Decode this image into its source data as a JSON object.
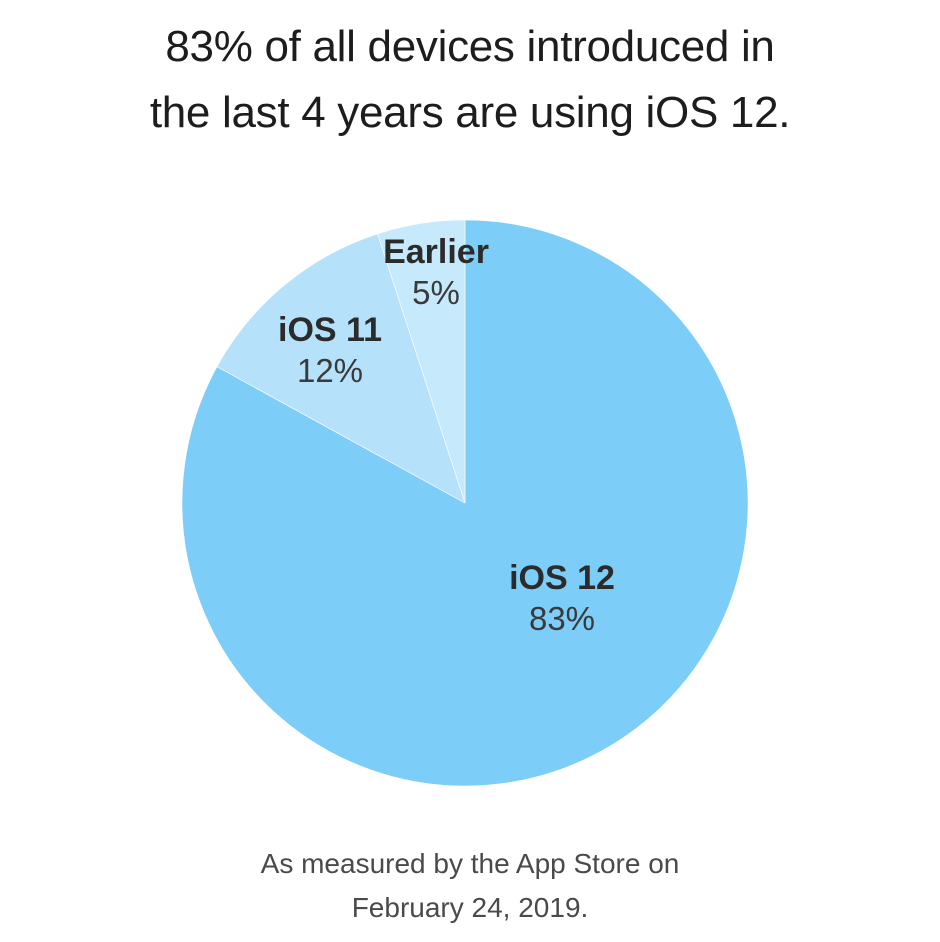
{
  "title": {
    "line1": "83% of all devices introduced in",
    "line2": "the last 4 years are using iOS 12."
  },
  "footnote": {
    "line1": "As measured by the App Store on",
    "line2": "February 24, 2019."
  },
  "colors": {
    "ios12": "#7ccdf8",
    "ios11": "#b5e2fa",
    "earlier": "#c6e9fc",
    "divider": "#ffffff"
  },
  "chart_data": {
    "type": "pie",
    "title": "83% of all devices introduced in the last 4 years are using iOS 12.",
    "subtitle": "As measured by the App Store on February 24, 2019.",
    "categories": [
      "iOS 12",
      "iOS 11",
      "Earlier"
    ],
    "values": [
      83,
      12,
      5
    ],
    "labels": [
      {
        "name": "iOS 12",
        "pct": "83%"
      },
      {
        "name": "iOS 11",
        "pct": "12%"
      },
      {
        "name": "Earlier",
        "pct": "5%"
      }
    ],
    "slice_colors": [
      "#7ccdf8",
      "#b5e2fa",
      "#c6e9fc"
    ],
    "start_angle": "12 o'clock, clockwise",
    "legend": "none (inline labels)"
  }
}
